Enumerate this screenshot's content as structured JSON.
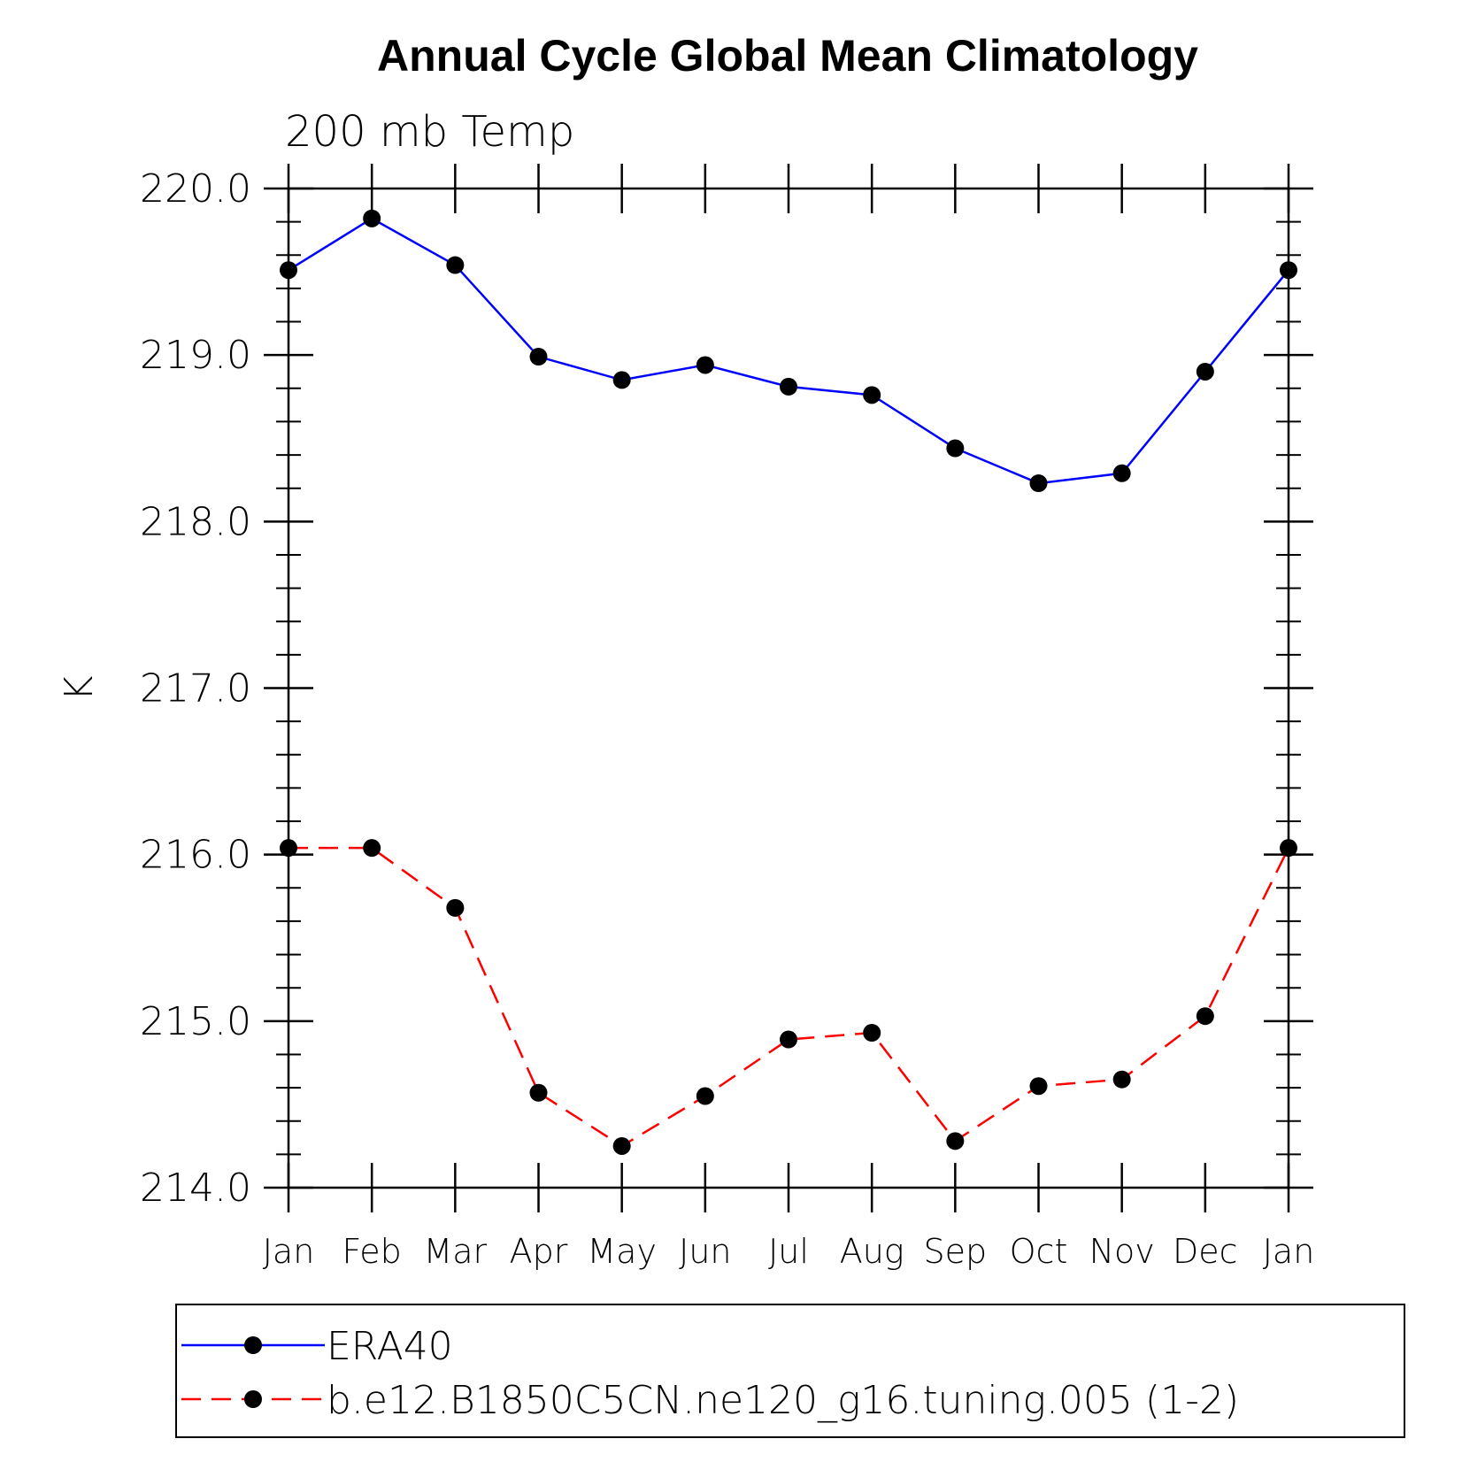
{
  "chart_data": {
    "type": "line",
    "title": "Annual Cycle Global Mean Climatology",
    "subtitle": "200 mb Temp",
    "ylabel": "K",
    "xlabel": "",
    "ylim": [
      214.0,
      220.0
    ],
    "yticks": [
      "214.0",
      "215.0",
      "216.0",
      "217.0",
      "218.0",
      "219.0",
      "220.0"
    ],
    "categories": [
      "Jan",
      "Feb",
      "Mar",
      "Apr",
      "May",
      "Jun",
      "Jul",
      "Aug",
      "Sep",
      "Oct",
      "Nov",
      "Dec",
      "Jan"
    ],
    "series": [
      {
        "name": "ERA40",
        "color": "#0000ff",
        "dash": "solid",
        "values": [
          219.51,
          219.82,
          219.54,
          218.99,
          218.85,
          218.94,
          218.81,
          218.76,
          218.44,
          218.23,
          218.29,
          218.9,
          219.51
        ]
      },
      {
        "name": "b.e12.B1850C5CN.ne120_g16.tuning.005 (1-2)",
        "color": "#ff0000",
        "dash": "dashed",
        "values": [
          216.04,
          216.04,
          215.68,
          214.57,
          214.25,
          214.55,
          214.89,
          214.93,
          214.28,
          214.61,
          214.65,
          215.03,
          216.04
        ]
      }
    ],
    "legend_position": "bottom",
    "marker_color": "#000000"
  }
}
